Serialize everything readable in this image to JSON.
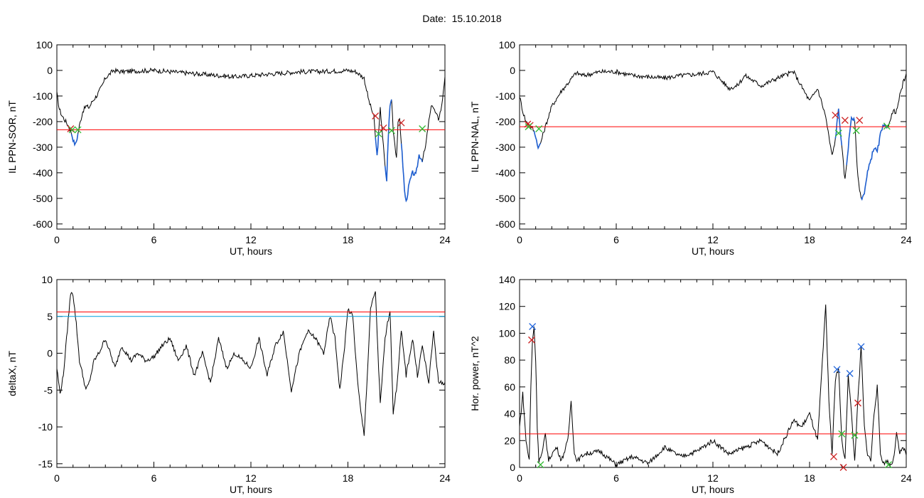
{
  "title": "Date:  15.10.2018",
  "colors": {
    "trace": "#000000",
    "highlight": "#1f5fd0",
    "threshold": "#ff0000",
    "threshold2": "#00a0e0",
    "mark_red": "#cc2222",
    "mark_green": "#33bb33",
    "mark_blue": "#2266dd"
  },
  "chart_data": [
    {
      "id": "panel1",
      "type": "line",
      "xlabel": "UT, hours",
      "ylabel": "IL PPN-SOR, nT",
      "xlim": [
        0,
        24
      ],
      "ylim": [
        -620,
        100
      ],
      "xticks": [
        0,
        6,
        12,
        18,
        24
      ],
      "yticks": [
        100,
        0,
        -100,
        -200,
        -300,
        -400,
        -500,
        -600
      ],
      "threshold": -232,
      "series": [
        {
          "x": [
            0,
            0.15,
            0.3,
            0.5,
            0.7,
            0.9,
            1.05,
            1.15,
            1.25,
            1.4,
            1.6,
            1.8,
            2.0,
            2.2,
            2.5,
            2.8,
            3.0,
            3.5,
            4,
            5,
            6,
            7,
            8,
            9,
            10,
            11,
            12,
            13,
            14,
            15,
            16,
            17,
            18,
            18.5,
            19,
            19.3,
            19.5,
            19.6,
            19.7,
            19.8,
            19.9,
            20.0,
            20.1,
            20.3,
            20.4,
            20.5,
            20.6,
            20.7,
            20.8,
            21.0,
            21.1,
            21.2,
            21.3,
            21.4,
            21.5,
            21.6,
            21.8,
            22.0,
            22.2,
            22.4,
            22.6,
            22.8,
            23.0,
            23.2,
            23.4,
            23.6,
            23.8,
            24
          ],
          "y": [
            -90,
            -150,
            -175,
            -195,
            -215,
            -245,
            -280,
            -290,
            -265,
            -215,
            -160,
            -140,
            -145,
            -120,
            -95,
            -60,
            -30,
            0,
            -5,
            -2,
            0,
            -5,
            -10,
            -15,
            -20,
            -25,
            -20,
            -15,
            -10,
            -5,
            -5,
            -3,
            0,
            -5,
            -30,
            -120,
            -160,
            -180,
            -260,
            -335,
            -250,
            -150,
            -220,
            -380,
            -430,
            -250,
            -140,
            -110,
            -230,
            -340,
            -210,
            -190,
            -280,
            -370,
            -470,
            -515,
            -440,
            -400,
            -410,
            -330,
            -350,
            -300,
            -200,
            -130,
            -165,
            -190,
            -140,
            -20
          ]
        }
      ],
      "marks_red": [
        {
          "x": 0.85,
          "y": -228
        },
        {
          "x": 19.7,
          "y": -178
        },
        {
          "x": 20.2,
          "y": -225
        },
        {
          "x": 21.3,
          "y": -205
        }
      ],
      "marks_green": [
        {
          "x": 0.95,
          "y": -232
        },
        {
          "x": 1.3,
          "y": -232
        },
        {
          "x": 19.9,
          "y": -248
        },
        {
          "x": 20.7,
          "y": -235
        },
        {
          "x": 22.6,
          "y": -228
        }
      ],
      "highlight": [
        [
          0.9,
          1.3
        ],
        [
          19.7,
          19.9
        ],
        [
          20.3,
          20.7
        ],
        [
          21.3,
          22.6
        ]
      ]
    },
    {
      "id": "panel2",
      "type": "line",
      "xlabel": "UT, hours",
      "ylabel": "IL PPN-NAL, nT",
      "xlim": [
        0,
        24
      ],
      "ylim": [
        -620,
        100
      ],
      "xticks": [
        0,
        6,
        12,
        18,
        24
      ],
      "yticks": [
        100,
        0,
        -100,
        -200,
        -300,
        -400,
        -500,
        -600
      ],
      "threshold": -220,
      "series": [
        {
          "x": [
            0,
            0.2,
            0.4,
            0.6,
            0.8,
            1.0,
            1.1,
            1.2,
            1.3,
            1.5,
            1.8,
            2.0,
            2.3,
            2.6,
            3.0,
            3.5,
            4,
            5,
            6,
            7,
            8,
            9,
            10,
            11,
            12,
            13,
            13.5,
            14,
            15,
            16,
            17,
            18,
            18.5,
            19,
            19.2,
            19.4,
            19.6,
            19.8,
            20.0,
            20.2,
            20.4,
            20.6,
            20.8,
            21.0,
            21.2,
            21.4,
            21.6,
            21.8,
            22.0,
            22.2,
            22.4,
            22.6,
            22.8,
            23.0,
            23.2,
            23.4,
            23.6,
            23.8,
            24
          ],
          "y": [
            -100,
            -160,
            -200,
            -215,
            -225,
            -255,
            -290,
            -300,
            -285,
            -240,
            -180,
            -140,
            -110,
            -80,
            -50,
            -10,
            -20,
            -5,
            -5,
            -20,
            -25,
            -30,
            -20,
            -15,
            -5,
            -70,
            -60,
            -20,
            -60,
            -30,
            -5,
            -120,
            -70,
            -180,
            -260,
            -335,
            -270,
            -150,
            -300,
            -430,
            -300,
            -180,
            -200,
            -420,
            -500,
            -480,
            -400,
            -350,
            -300,
            -320,
            -250,
            -215,
            -230,
            -190,
            -160,
            -160,
            -100,
            -50,
            -20
          ]
        }
      ],
      "marks_red": [
        {
          "x": 0.5,
          "y": -210
        },
        {
          "x": 0.65,
          "y": -215
        },
        {
          "x": 19.6,
          "y": -175
        },
        {
          "x": 20.2,
          "y": -195
        },
        {
          "x": 21.1,
          "y": -195
        }
      ],
      "marks_green": [
        {
          "x": 0.55,
          "y": -220
        },
        {
          "x": 1.2,
          "y": -228
        },
        {
          "x": 19.8,
          "y": -245
        },
        {
          "x": 20.9,
          "y": -235
        },
        {
          "x": 22.8,
          "y": -218
        }
      ],
      "highlight": [
        [
          0.9,
          1.3
        ],
        [
          19.6,
          20.0
        ],
        [
          20.3,
          20.8
        ],
        [
          21.2,
          22.8
        ]
      ]
    },
    {
      "id": "panel3",
      "type": "line",
      "xlabel": "UT, hours",
      "ylabel": "deltaX, nT",
      "xlim": [
        0,
        24
      ],
      "ylim": [
        -15.5,
        10
      ],
      "xticks": [
        0,
        6,
        12,
        18,
        24
      ],
      "yticks": [
        10,
        5,
        0,
        -5,
        -10,
        -15
      ],
      "threshold": 5.6,
      "threshold2": 5.0,
      "series": [
        {
          "x": [
            0,
            0.2,
            0.4,
            0.6,
            0.8,
            0.9,
            1.0,
            1.2,
            1.4,
            1.6,
            1.8,
            2.0,
            2.3,
            2.6,
            3.0,
            3.3,
            3.6,
            4.0,
            4.3,
            4.6,
            5.0,
            5.5,
            6.0,
            6.5,
            7.0,
            7.5,
            8.0,
            8.5,
            9.0,
            9.5,
            10.0,
            10.5,
            11.0,
            11.5,
            12.0,
            12.5,
            13.0,
            13.5,
            14.0,
            14.5,
            15.0,
            15.5,
            16.0,
            16.5,
            16.9,
            17.2,
            17.5,
            17.8,
            18.0,
            18.3,
            18.6,
            18.8,
            19.0,
            19.2,
            19.4,
            19.7,
            19.8,
            20.0,
            20.3,
            20.6,
            20.8,
            21.0,
            21.3,
            21.6,
            22.0,
            22.3,
            22.6,
            23.0,
            23.3,
            23.6,
            24
          ],
          "y": [
            -2,
            -5.5,
            -3,
            2,
            7,
            8.5,
            8,
            4,
            -1,
            -3,
            -5,
            -4,
            -1,
            0,
            2,
            0,
            -2,
            1,
            0,
            -1,
            0,
            -1,
            -0.5,
            1,
            2,
            -1,
            1,
            -3,
            0,
            -4,
            2,
            -2,
            0,
            -1,
            -2,
            2,
            -3,
            1,
            3,
            -5,
            0,
            3,
            2,
            0,
            5,
            2,
            -5,
            1,
            6,
            5,
            -4,
            -8,
            -11,
            -3,
            6,
            8.5,
            3,
            -7,
            2,
            6,
            -8,
            -5,
            3,
            -3,
            2,
            -3,
            1,
            -4,
            3,
            -4,
            -4
          ]
        }
      ],
      "highlight": []
    },
    {
      "id": "panel4",
      "type": "line",
      "xlabel": "UT, hours",
      "ylabel": "Hor. power, nT^2",
      "xlim": [
        0,
        24
      ],
      "ylim": [
        0,
        140
      ],
      "xticks": [
        0,
        6,
        12,
        18,
        24
      ],
      "yticks": [
        140,
        120,
        100,
        80,
        60,
        40,
        20,
        0
      ],
      "threshold": 25,
      "series": [
        {
          "x": [
            0,
            0.2,
            0.4,
            0.6,
            0.7,
            0.8,
            0.9,
            1.0,
            1.1,
            1.2,
            1.4,
            1.6,
            1.8,
            2.0,
            2.3,
            2.6,
            3.0,
            3.2,
            3.4,
            3.6,
            4.0,
            5,
            6,
            7,
            8,
            9,
            10,
            11,
            12,
            13,
            14,
            15,
            16,
            17,
            17.5,
            18,
            18.5,
            18.8,
            19.0,
            19.2,
            19.4,
            19.6,
            19.8,
            20.0,
            20.2,
            20.4,
            20.6,
            20.8,
            21.0,
            21.2,
            21.4,
            21.6,
            21.8,
            22.0,
            22.2,
            22.4,
            22.6,
            22.8,
            23.0,
            23.2,
            23.4,
            23.6,
            23.8,
            24
          ],
          "y": [
            30,
            55,
            20,
            5,
            60,
            95,
            105,
            80,
            30,
            5,
            10,
            25,
            5,
            10,
            15,
            5,
            20,
            50,
            10,
            5,
            10,
            12,
            2,
            8,
            3,
            15,
            8,
            12,
            20,
            10,
            15,
            20,
            10,
            35,
            30,
            40,
            20,
            80,
            120,
            50,
            10,
            65,
            75,
            20,
            5,
            70,
            40,
            5,
            50,
            90,
            30,
            10,
            5,
            40,
            60,
            10,
            3,
            5,
            2,
            5,
            25,
            10,
            15,
            10
          ]
        }
      ],
      "marks_red": [
        {
          "x": 0.75,
          "y": 95
        },
        {
          "x": 19.5,
          "y": 8
        },
        {
          "x": 20.1,
          "y": 0
        },
        {
          "x": 21.0,
          "y": 48
        }
      ],
      "marks_green": [
        {
          "x": 1.3,
          "y": 2
        },
        {
          "x": 20.0,
          "y": 25
        },
        {
          "x": 20.8,
          "y": 24
        },
        {
          "x": 22.9,
          "y": 2
        }
      ],
      "marks_blue": [
        {
          "x": 0.8,
          "y": 105
        },
        {
          "x": 19.7,
          "y": 73
        },
        {
          "x": 20.5,
          "y": 70
        },
        {
          "x": 21.2,
          "y": 90
        }
      ],
      "highlight": []
    }
  ]
}
